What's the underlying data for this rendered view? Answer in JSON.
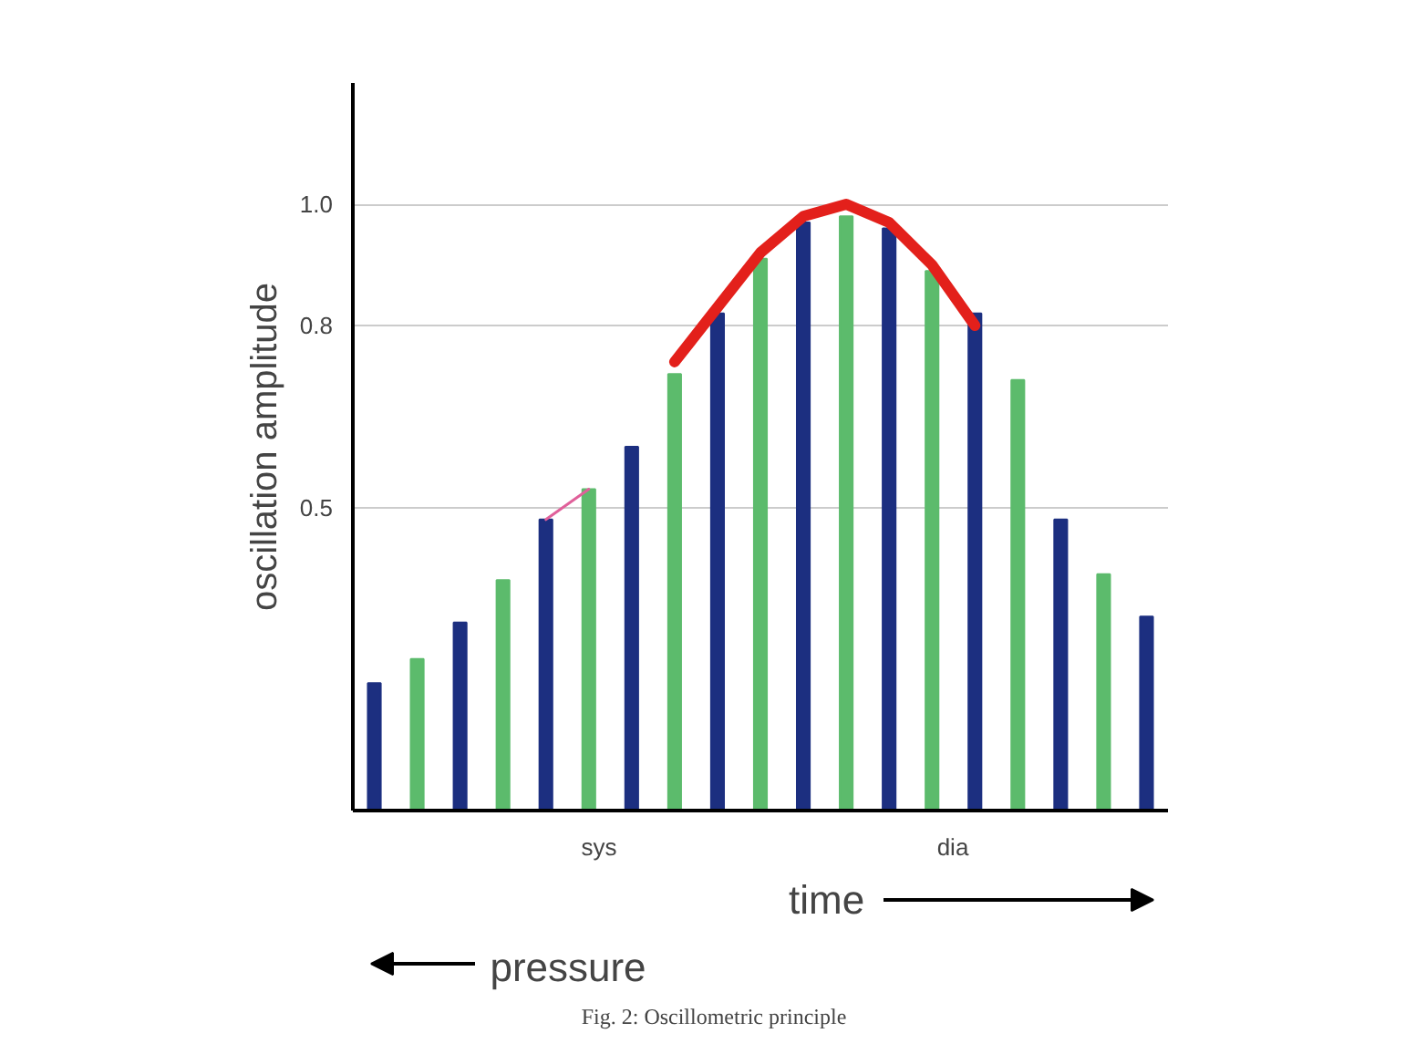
{
  "chart_data": {
    "type": "bar",
    "ylabel": "oscillation amplitude",
    "categories": [
      null,
      null,
      null,
      null,
      null,
      null,
      null,
      null,
      null,
      null,
      null,
      null,
      null,
      null,
      null,
      null,
      null,
      null,
      null
    ],
    "series": [
      {
        "values": [
          0.21,
          0.25,
          0.31,
          0.38,
          0.48,
          0.53,
          0.6,
          0.72,
          0.82,
          0.91,
          0.97,
          0.98,
          0.96,
          0.89,
          0.82,
          0.71,
          0.48,
          0.39,
          0.32
        ],
        "colors": [
          "#1c2f80",
          "#5cbb6c",
          "#1c2f80",
          "#5cbb6c",
          "#1c2f80",
          "#5cbb6c",
          "#1c2f80",
          "#5cbb6c",
          "#1c2f80",
          "#5cbb6c",
          "#1c2f80",
          "#5cbb6c",
          "#1c2f80",
          "#5cbb6c",
          "#1c2f80",
          "#5cbb6c",
          "#1c2f80",
          "#5cbb6c",
          "#1c2f80"
        ]
      },
      {
        "type": "line",
        "color": "#e3201b",
        "values": [
          null,
          null,
          null,
          null,
          null,
          null,
          null,
          0.74,
          0.83,
          0.92,
          0.98,
          1.0,
          0.97,
          0.9,
          0.8,
          null,
          null,
          null,
          null
        ]
      },
      {
        "type": "line",
        "color": "#e0609a",
        "values": [
          null,
          null,
          null,
          null,
          0.48,
          0.53,
          null,
          null,
          null,
          null,
          null,
          null,
          null,
          null,
          null,
          null,
          null,
          null,
          null
        ]
      }
    ],
    "ylim": [
      0,
      1.2
    ],
    "yticks": [
      0.5,
      0.8,
      {
        "value": 1.0,
        "label": "1.0"
      }
    ],
    "grid": "y",
    "tick_labels": "y",
    "annotations": [
      "sys",
      "dia",
      "time",
      "pressure",
      "Fig. 2: Oscillometric principle"
    ]
  }
}
